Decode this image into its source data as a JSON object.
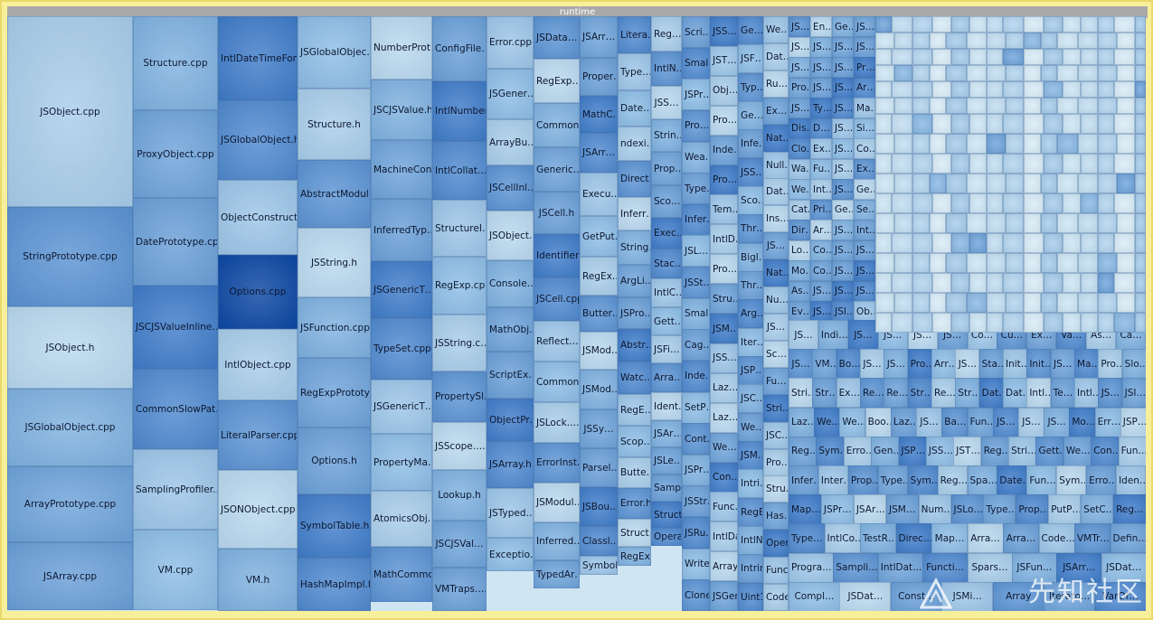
{
  "window": {
    "title": "runtime"
  },
  "colors": {
    "tile_light": "#cde6f4",
    "tile_mid": "#7fb2e0",
    "tile_dark": "#3a78c6",
    "selected": "#0b47a3",
    "frame": "#e9d96c"
  },
  "watermark": "先知社区",
  "columns": [
    [
      "JSObject.cpp",
      "StringPrototype.cpp",
      "JSObject.h",
      "JSGlobalObject.cpp",
      "ArrayPrototype.cpp",
      "JSArray.cpp"
    ],
    [
      "Structure.cpp",
      "ProxyObject.cpp",
      "DatePrototype.cpp",
      "JSCJSValueInline…",
      "CommonSlowPat…",
      "SamplingProfiler.…",
      "VM.cpp"
    ],
    [
      "IntlDateTimeFor…",
      "JSGlobalObject.h",
      "ObjectConstruct…",
      "Options.cpp",
      "IntlObject.cpp",
      "LiteralParser.cpp",
      "JSONObject.cpp",
      "VM.h"
    ],
    [
      "JSGlobalObjec…",
      "Structure.h",
      "AbstractModul…",
      "JSString.h",
      "JSFunction.cpp",
      "RegExpPrototy…",
      "Options.h",
      "SymbolTable.h",
      "HashMapImpl.h"
    ],
    [
      "NumberProt…",
      "JSCJSValue.h",
      "MachineCon…",
      "InferredTyp…",
      "JSGenericT…",
      "TypeSet.cpp",
      "JSGenericT…",
      "PropertyMa…",
      "AtomicsObj…",
      "MathCommo…"
    ],
    [
      "ConfigFile…",
      "IntlNumber…",
      "IntlCollat…",
      "StructureI…",
      "RegExp.cpp",
      "JSString.c…",
      "PropertySl…",
      "JSScope.…",
      "Lookup.h",
      "JSCJSVal…",
      "VMTraps.…"
    ],
    [
      "Error.cpp",
      "JSGener…",
      "ArrayBu…",
      "JSCellInl…",
      "JSObject…",
      "Console…",
      "MathObj…",
      "ScriptEx…",
      "ObjectPr…",
      "JSArray.h",
      "JSTyped…",
      "Exceptio…"
    ],
    [
      "JSData…",
      "RegExp…",
      "Common…",
      "Generic…",
      "JSCell.h",
      "Identifier.h",
      "JSCell.cpp",
      "Reflect…",
      "Common…",
      "JSLock.…",
      "ErrorInst…",
      "JSModul…",
      "Inferred…",
      "TypedAr…"
    ],
    [
      "JSArr…",
      "Proper…",
      "MathC…",
      "JSArr…",
      "Execu…",
      "GetPut…",
      "RegEx…",
      "Butter…",
      "JSMod…",
      "JSMod…",
      "JSSy…",
      "Parsel…",
      "JSBou…",
      "Classl…",
      "Symbol…"
    ],
    [
      "Litera…",
      "Type…",
      "Date…",
      "ndexi…",
      "Direct…",
      "Inferr…",
      "String…",
      "ArgLi…",
      "JSPro…",
      "Abstr…",
      "Watc…",
      "RegE…",
      "Scop…",
      "Butte…",
      "Error.h",
      "Struct…",
      "RegExp…"
    ],
    [
      "Reg…",
      "IntlN…",
      "JSS…",
      "Strin…",
      "Prop…",
      "Sco…",
      "Exec…",
      "Stac…",
      "IntlC…",
      "Gett…",
      "JSFi…",
      "Arra…",
      "Ident…",
      "JSAr…",
      "JSLe…",
      "Samp…",
      "Struct…",
      "Operati…"
    ]
  ],
  "grid_labels": [
    [
      "Scri…",
      "Smal…",
      "JSPr…",
      "Pro…",
      "Wea…",
      "Type…",
      "Infer…",
      "JSL…",
      "JSSt…",
      "Smal…",
      "Cag…",
      "Inde…",
      "SetP…",
      "Cont…",
      "JSPr…",
      "JSStr…",
      "JSRu…",
      "WriteB…",
      "Cloned…"
    ],
    [
      "JSS…",
      "JST…",
      "Obj…",
      "Pro…",
      "Inde…",
      "Pro…",
      "Tem…",
      "IntlD…",
      "Pro…",
      "Stru…",
      "JSM…",
      "JSS…",
      "Laz…",
      "Laz…",
      "We…",
      "Con…",
      "Func…",
      "IntlDa…",
      "Array…",
      "JSGen…"
    ],
    [
      "Ge…",
      "JSF…",
      "Typ…",
      "Ge…",
      "Infe…",
      "JSS…",
      "Sco…",
      "Thr…",
      "Bigl…",
      "Thr…",
      "Arg…",
      "Iter…",
      "JSP…",
      "JSC…",
      "We…",
      "JSM…",
      "Intri…",
      "RegE…",
      "IntlNu…",
      "Intrins…",
      "Uint16…"
    ],
    [
      "We…",
      "Dat…",
      "Ru…",
      "Ex…",
      "Nat…",
      "Null…",
      "Dat…",
      "Ins…",
      "JS…",
      "Nat…",
      "Nu…",
      "JS…",
      "Sc…",
      "Fu…",
      "Stri…",
      "JSC…",
      "Pro…",
      "Stru…",
      "Has…",
      "Oper…",
      "Functi…",
      "CodeC…"
    ]
  ],
  "row_labels": [
    [
      "JS…",
      "Indi…",
      "JS…",
      "JS…",
      "JS…",
      "JS…",
      "Co…",
      "Cu…",
      "Ex…",
      "Va…",
      "As…",
      "Ca…"
    ],
    [
      "JS…",
      "VM…",
      "Bo…",
      "JS…",
      "JS…",
      "Pro…",
      "Arr…",
      "JS…",
      "Sta…",
      "Init…",
      "Init…",
      "JS…",
      "Ma…",
      "Pro…",
      "Slo…"
    ],
    [
      "Stri…",
      "Str…",
      "Ex…",
      "Re…",
      "Re…",
      "Str…",
      "Re…",
      "Str…",
      "Dat…",
      "Dat…",
      "Intl…",
      "Te…",
      "Intl…",
      "JS…",
      "JSI…"
    ],
    [
      "Laz…",
      "We…",
      "We…",
      "Boo…",
      "Laz…",
      "JS…",
      "Ba…",
      "Fun…",
      "JS…",
      "JS…",
      "JS…",
      "Mo…",
      "Err…",
      "JSP…"
    ],
    [
      "Reg…",
      "Sym…",
      "Erro…",
      "Gen…",
      "JSP…",
      "JSS…",
      "JST…",
      "Reg…",
      "Stri…",
      "Gett…",
      "We…",
      "Con…",
      "Fun…"
    ],
    [
      "Infer…",
      "Inter…",
      "Prop…",
      "Type…",
      "Sym…",
      "Reg…",
      "Spa…",
      "Date…",
      "Fun…",
      "Sym…",
      "Erro…",
      "Iden…"
    ],
    [
      "Map…",
      "JSPr…",
      "JSAr…",
      "JSM…",
      "Num…",
      "JSLo…",
      "Type…",
      "Prop…",
      "PutP…",
      "SetC…",
      "Reg…"
    ],
    [
      "Type…",
      "IntlCo…",
      "TestR…",
      "Direc…",
      "Map…",
      "Arra…",
      "Arra…",
      "Code…",
      "VMTr…",
      "Defin…"
    ],
    [
      "Progra…",
      "Sampli…",
      "IntlDat…",
      "Functi…",
      "Spars…",
      "JSFun…",
      "JSArr…",
      "JSDat…"
    ],
    [
      "Compl…",
      "JSDat…",
      "Const…",
      "JSMi…",
      "Array",
      "Iterato…",
      "VarOf…"
    ]
  ],
  "small_col_a": [
    "JS…",
    "JS…",
    "JS…",
    "Pro…",
    "JS…",
    "Dis…",
    "Clo…",
    "Wa…",
    "We…",
    "Cat…",
    "Dir…",
    "Lo…",
    "Mo…",
    "As…",
    "Ev…"
  ],
  "small_col_b": [
    "En…",
    "JS…",
    "JS…",
    "JS…",
    "Ty…",
    "D…",
    "Ex…",
    "Fu…",
    "Int…",
    "Pri…",
    "Ar…",
    "Co…",
    "Co…",
    "JS…",
    "JS…"
  ],
  "small_col_c": [
    "Ge…",
    "JS…",
    "JS…",
    "JS…",
    "JS…",
    "JS…",
    "JS…",
    "JS…",
    "JS…",
    "Ge…",
    "JS…",
    "JS…",
    "JS…",
    "JS…",
    "JSI…"
  ],
  "small_col_d": [
    "JS…",
    "JS…",
    "Pr…",
    "Ar…",
    "Ma…",
    "Si…",
    "Co…",
    "Ex…",
    "Ge…",
    "Se…",
    "Int…",
    "JS…",
    "JS…",
    "JS…",
    "Ob…"
  ]
}
